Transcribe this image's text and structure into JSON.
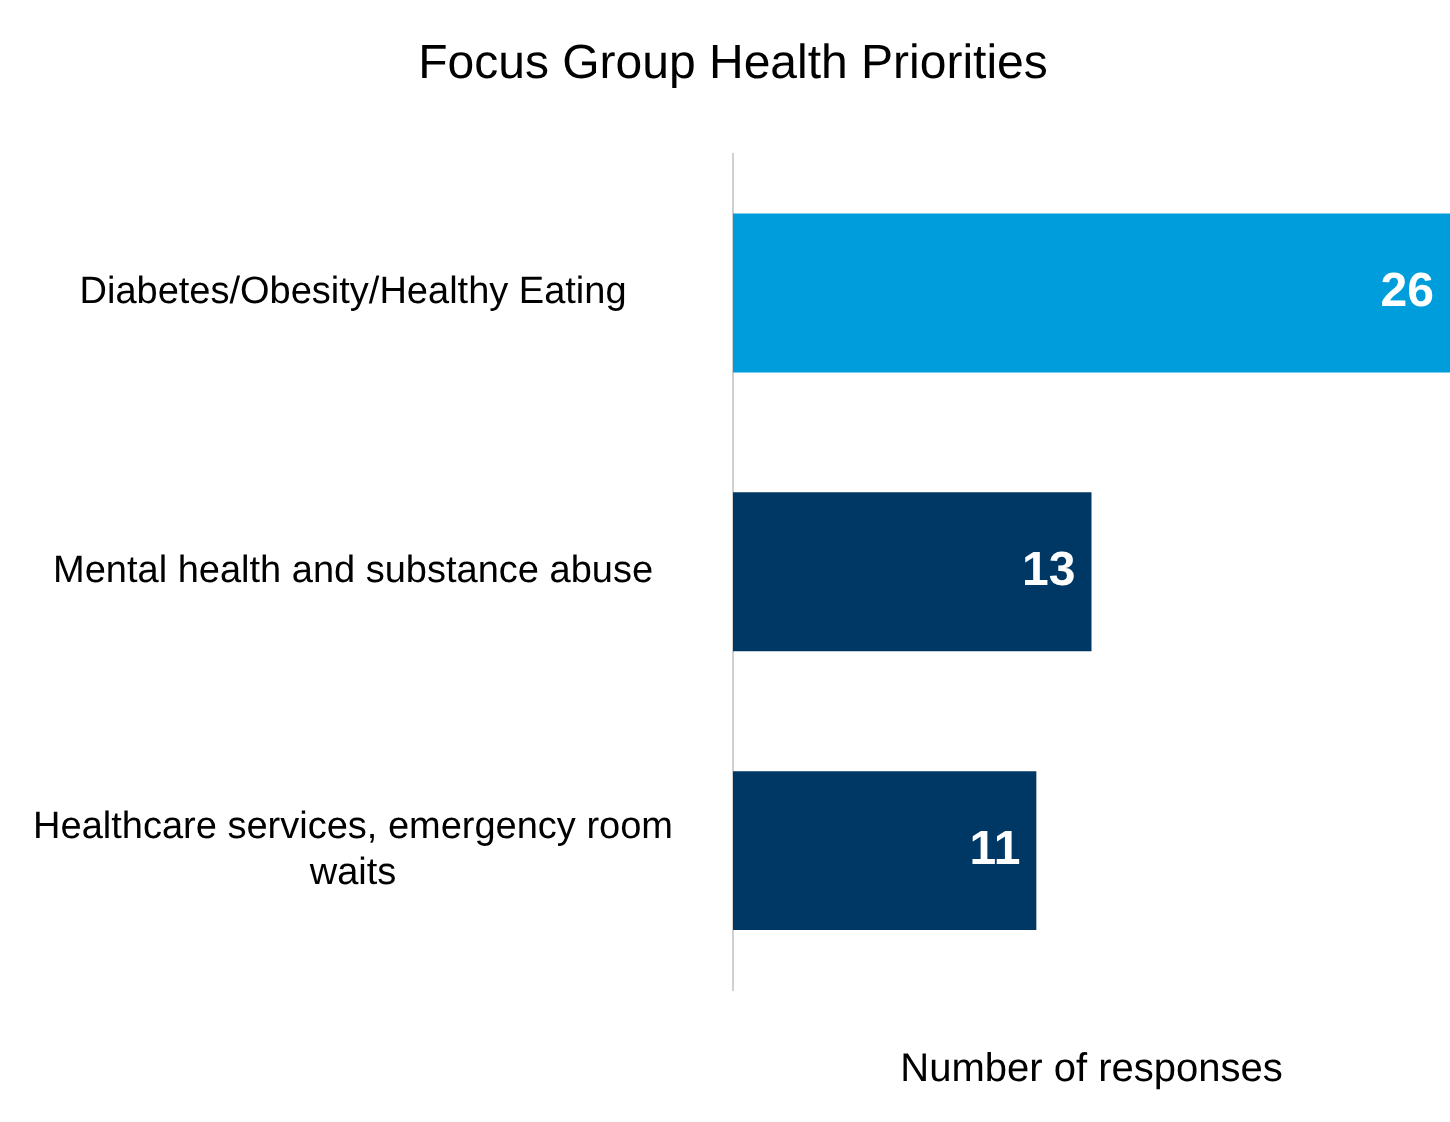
{
  "chart_data": {
    "type": "bar",
    "orientation": "horizontal",
    "title": "Focus Group Health Priorities",
    "xlabel": "Number of responses",
    "categories": [
      "Diabetes/Obesity/Healthy Eating",
      "Mental health and substance abuse",
      "Healthcare services, emergency room waits"
    ],
    "values": [
      26,
      13,
      11
    ],
    "colors": [
      "#009ddc",
      "#003865",
      "#003865"
    ],
    "data_labels": true,
    "grid": false,
    "legend": false,
    "tick_labels": "y",
    "relative": false
  }
}
